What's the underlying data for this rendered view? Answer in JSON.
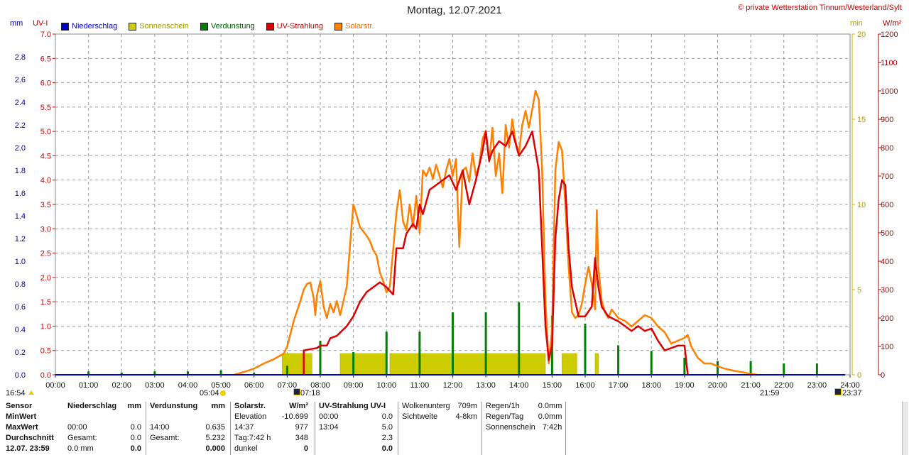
{
  "header": {
    "title": "Montag, 12.07.2021",
    "copyright": "© private Wetterstation Tinnum/Westerland/Sylt"
  },
  "units": {
    "left1": "mm",
    "left2": "UV-I",
    "right1": "min",
    "right2": "W/m²"
  },
  "legend": [
    {
      "label": "Niederschlag",
      "color": "#0000cc"
    },
    {
      "label": "Sonnenschein",
      "color": "#cccc00"
    },
    {
      "label": "Verdunstung",
      "color": "#008000"
    },
    {
      "label": "UV-Strahlung",
      "color": "#dd0000"
    },
    {
      "label": "Solarstr.",
      "color": "#ff8000"
    }
  ],
  "sun_times": {
    "moonset": "16:54",
    "sunrise": "05:04",
    "civil_dawn": "07:18",
    "sunset": "21:59",
    "civil_dusk": "23:37"
  },
  "stats": {
    "col1": {
      "header": "Sensor",
      "rows": [
        "MinWert",
        "MaxWert",
        "Durchschnitt",
        "12.07. 23:59"
      ]
    },
    "niederschlag": {
      "header": "Niederschlag",
      "unit": "mm",
      "rows": [
        [
          "",
          ""
        ],
        [
          "00:00",
          "0.0"
        ],
        [
          "Gesamt:",
          "0.0"
        ],
        [
          "0.0 mm",
          "0.0"
        ]
      ]
    },
    "verdunstung": {
      "header": "Verdunstung",
      "unit": "mm",
      "rows": [
        [
          "",
          ""
        ],
        [
          "14:00",
          "0.635"
        ],
        [
          "Gesamt:",
          "5.232"
        ],
        [
          "",
          "0.000"
        ]
      ]
    },
    "solar": {
      "header": "Solarstr.",
      "unit": "W/m²",
      "rows": [
        [
          "Elevation",
          "-10.699"
        ],
        [
          "14:37",
          "977"
        ],
        [
          "Tag:7:42 h",
          "348"
        ],
        [
          "dunkel",
          "0"
        ]
      ]
    },
    "uv": {
      "header": "UV-Strahlung UV-I",
      "rows": [
        [
          "00:00",
          "0.0"
        ],
        [
          "13:04",
          "5.0"
        ],
        [
          "",
          "2.3"
        ],
        [
          "",
          "0.0"
        ]
      ]
    },
    "wolken": {
      "rows": [
        [
          "Wolkenunterg",
          "709m"
        ],
        [
          "Sichtweite",
          "4-8km"
        ]
      ]
    },
    "regen": {
      "rows": [
        [
          "Regen/1h",
          "0.0mm"
        ],
        [
          "Regen/Tag",
          "0.0mm"
        ],
        [
          "Sonnenschein",
          "7:42h"
        ]
      ]
    }
  },
  "chart_data": {
    "type": "line",
    "title": "Montag, 12.07.2021",
    "x_unit": "hour",
    "xlim": [
      0,
      24
    ],
    "x_tick_labels": [
      "00:00",
      "01:00",
      "02:00",
      "03:00",
      "04:00",
      "05:00",
      "06:00",
      "07:00",
      "08:00",
      "09:00",
      "10:00",
      "11:00",
      "12:00",
      "13:00",
      "14:00",
      "15:00",
      "16:00",
      "17:00",
      "18:00",
      "19:00",
      "20:00",
      "21:00",
      "22:00",
      "23:00",
      "24:00"
    ],
    "axes": {
      "mm": {
        "range": [
          0,
          3.0
        ],
        "ticks": [
          0.0,
          0.2,
          0.4,
          0.6,
          0.8,
          1.0,
          1.2,
          1.4,
          1.6,
          1.8,
          2.0,
          2.2,
          2.4,
          2.6,
          2.8
        ]
      },
      "uv": {
        "range": [
          0,
          7.0
        ],
        "ticks": [
          0.0,
          0.5,
          1.0,
          1.5,
          2.0,
          2.5,
          3.0,
          3.5,
          4.0,
          4.5,
          5.0,
          5.5,
          6.0,
          6.5,
          7.0
        ]
      },
      "min": {
        "range": [
          0,
          20
        ],
        "ticks": [
          0,
          5,
          10,
          15,
          20
        ]
      },
      "wm2": {
        "range": [
          0,
          1200
        ],
        "ticks": [
          0,
          100,
          200,
          300,
          400,
          500,
          600,
          700,
          800,
          900,
          1000,
          1100,
          1200
        ]
      }
    },
    "grid": true,
    "series": [
      {
        "name": "Solarstr.",
        "axis": "wm2",
        "color": "#ff8000",
        "points": [
          [
            5.4,
            0
          ],
          [
            5.7,
            10
          ],
          [
            6.0,
            22
          ],
          [
            6.3,
            40
          ],
          [
            6.6,
            55
          ],
          [
            6.9,
            75
          ],
          [
            7.0,
            100
          ],
          [
            7.2,
            190
          ],
          [
            7.4,
            260
          ],
          [
            7.5,
            300
          ],
          [
            7.6,
            320
          ],
          [
            7.7,
            325
          ],
          [
            7.8,
            270
          ],
          [
            7.85,
            210
          ],
          [
            7.9,
            280
          ],
          [
            8.0,
            330
          ],
          [
            8.1,
            240
          ],
          [
            8.2,
            200
          ],
          [
            8.3,
            250
          ],
          [
            8.4,
            220
          ],
          [
            8.5,
            260
          ],
          [
            8.6,
            210
          ],
          [
            8.8,
            310
          ],
          [
            8.9,
            460
          ],
          [
            9.0,
            600
          ],
          [
            9.1,
            560
          ],
          [
            9.2,
            520
          ],
          [
            9.4,
            490
          ],
          [
            9.5,
            470
          ],
          [
            9.6,
            440
          ],
          [
            9.7,
            420
          ],
          [
            9.8,
            360
          ],
          [
            9.9,
            330
          ],
          [
            10.0,
            290
          ],
          [
            10.1,
            310
          ],
          [
            10.2,
            440
          ],
          [
            10.3,
            570
          ],
          [
            10.4,
            650
          ],
          [
            10.5,
            540
          ],
          [
            10.6,
            510
          ],
          [
            10.7,
            600
          ],
          [
            10.8,
            520
          ],
          [
            10.9,
            630
          ],
          [
            11.0,
            500
          ],
          [
            11.1,
            720
          ],
          [
            11.2,
            700
          ],
          [
            11.3,
            730
          ],
          [
            11.4,
            690
          ],
          [
            11.5,
            740
          ],
          [
            11.6,
            700
          ],
          [
            11.7,
            660
          ],
          [
            11.8,
            720
          ],
          [
            11.9,
            760
          ],
          [
            12.0,
            700
          ],
          [
            12.1,
            760
          ],
          [
            12.2,
            450
          ],
          [
            12.3,
            720
          ],
          [
            12.4,
            730
          ],
          [
            12.5,
            680
          ],
          [
            12.6,
            780
          ],
          [
            12.7,
            700
          ],
          [
            12.8,
            740
          ],
          [
            12.9,
            830
          ],
          [
            13.0,
            860
          ],
          [
            13.1,
            750
          ],
          [
            13.2,
            870
          ],
          [
            13.3,
            700
          ],
          [
            13.4,
            780
          ],
          [
            13.5,
            640
          ],
          [
            13.6,
            880
          ],
          [
            13.7,
            800
          ],
          [
            13.8,
            900
          ],
          [
            13.9,
            820
          ],
          [
            14.0,
            780
          ],
          [
            14.1,
            880
          ],
          [
            14.2,
            930
          ],
          [
            14.3,
            870
          ],
          [
            14.5,
            1000
          ],
          [
            14.6,
            970
          ],
          [
            14.7,
            720
          ],
          [
            14.8,
            260
          ],
          [
            14.9,
            40
          ],
          [
            15.0,
            160
          ],
          [
            15.1,
            720
          ],
          [
            15.2,
            820
          ],
          [
            15.3,
            790
          ],
          [
            15.4,
            600
          ],
          [
            15.5,
            380
          ],
          [
            15.6,
            220
          ],
          [
            15.7,
            200
          ],
          [
            15.8,
            210
          ],
          [
            15.9,
            250
          ],
          [
            16.0,
            320
          ],
          [
            16.1,
            380
          ],
          [
            16.2,
            320
          ],
          [
            16.3,
            230
          ],
          [
            16.35,
            580
          ],
          [
            16.4,
            380
          ],
          [
            16.5,
            260
          ],
          [
            16.6,
            220
          ],
          [
            16.7,
            200
          ],
          [
            16.8,
            230
          ],
          [
            17.0,
            200
          ],
          [
            17.2,
            190
          ],
          [
            17.4,
            170
          ],
          [
            17.6,
            190
          ],
          [
            17.8,
            210
          ],
          [
            18.0,
            200
          ],
          [
            18.2,
            170
          ],
          [
            18.4,
            150
          ],
          [
            18.6,
            110
          ],
          [
            18.8,
            120
          ],
          [
            19.0,
            130
          ],
          [
            19.1,
            140
          ],
          [
            19.2,
            100
          ],
          [
            19.4,
            60
          ],
          [
            19.6,
            40
          ],
          [
            19.8,
            40
          ],
          [
            20.0,
            30
          ],
          [
            20.2,
            22
          ],
          [
            20.5,
            14
          ],
          [
            20.8,
            8
          ],
          [
            21.0,
            3
          ],
          [
            21.2,
            0
          ]
        ]
      },
      {
        "name": "UV-Strahlung",
        "axis": "uv",
        "color": "#dd0000",
        "points": [
          [
            7.5,
            0
          ],
          [
            7.5,
            0.5
          ],
          [
            7.9,
            0.55
          ],
          [
            8.0,
            0.6
          ],
          [
            8.2,
            0.6
          ],
          [
            8.3,
            0.75
          ],
          [
            8.5,
            0.8
          ],
          [
            8.8,
            1.0
          ],
          [
            9.0,
            1.2
          ],
          [
            9.2,
            1.5
          ],
          [
            9.4,
            1.7
          ],
          [
            9.6,
            1.8
          ],
          [
            9.8,
            1.9
          ],
          [
            10.0,
            1.8
          ],
          [
            10.2,
            1.65
          ],
          [
            10.3,
            2.6
          ],
          [
            10.5,
            2.6
          ],
          [
            10.6,
            2.9
          ],
          [
            10.8,
            3.1
          ],
          [
            10.9,
            3.0
          ],
          [
            11.0,
            3.5
          ],
          [
            11.1,
            3.3
          ],
          [
            11.3,
            3.8
          ],
          [
            11.5,
            3.9
          ],
          [
            11.7,
            4.0
          ],
          [
            11.9,
            4.1
          ],
          [
            12.1,
            3.8
          ],
          [
            12.3,
            4.2
          ],
          [
            12.5,
            3.5
          ],
          [
            12.7,
            4.0
          ],
          [
            12.9,
            4.6
          ],
          [
            13.0,
            5.0
          ],
          [
            13.1,
            4.4
          ],
          [
            13.2,
            4.6
          ],
          [
            13.4,
            4.8
          ],
          [
            13.6,
            4.7
          ],
          [
            13.8,
            5.0
          ],
          [
            14.0,
            4.5
          ],
          [
            14.2,
            4.7
          ],
          [
            14.4,
            5.0
          ],
          [
            14.6,
            4.2
          ],
          [
            14.8,
            1.0
          ],
          [
            14.9,
            0.3
          ],
          [
            15.0,
            0.6
          ],
          [
            15.1,
            2.8
          ],
          [
            15.2,
            3.6
          ],
          [
            15.3,
            4.0
          ],
          [
            15.4,
            3.9
          ],
          [
            15.5,
            2.6
          ],
          [
            15.6,
            1.8
          ],
          [
            15.8,
            1.2
          ],
          [
            16.0,
            1.2
          ],
          [
            16.2,
            1.4
          ],
          [
            16.3,
            2.4
          ],
          [
            16.4,
            1.8
          ],
          [
            16.5,
            1.4
          ],
          [
            16.7,
            1.2
          ],
          [
            17.0,
            1.1
          ],
          [
            17.2,
            1.0
          ],
          [
            17.4,
            0.9
          ],
          [
            17.6,
            1.0
          ],
          [
            17.8,
            0.9
          ],
          [
            18.0,
            0.95
          ],
          [
            18.2,
            0.7
          ],
          [
            18.4,
            0.5
          ],
          [
            18.6,
            0.55
          ],
          [
            18.8,
            0.6
          ],
          [
            19.0,
            0.6
          ],
          [
            19.05,
            0.3
          ],
          [
            19.1,
            0
          ]
        ]
      },
      {
        "name": "Sonnenschein",
        "axis": "min",
        "color": "#cccc00",
        "bars": [
          [
            6.85,
            7.75
          ],
          [
            8.6,
            10.0
          ],
          [
            10.1,
            14.8
          ],
          [
            15.3,
            15.75
          ],
          [
            16.3,
            16.4
          ]
        ],
        "level": 1.25
      },
      {
        "name": "Verdunstung",
        "axis": "mm",
        "color": "#008000",
        "points": [
          [
            1,
            0.03
          ],
          [
            2,
            0.02
          ],
          [
            3,
            0.03
          ],
          [
            4,
            0.03
          ],
          [
            5,
            0.04
          ],
          [
            6,
            0.02
          ],
          [
            7,
            0.08
          ],
          [
            8,
            0.3
          ],
          [
            9,
            0.2
          ],
          [
            10,
            0.38
          ],
          [
            11,
            0.38
          ],
          [
            12,
            0.55
          ],
          [
            13,
            0.55
          ],
          [
            14,
            0.64
          ],
          [
            15,
            0.52
          ],
          [
            16,
            0.45
          ],
          [
            17,
            0.26
          ],
          [
            18,
            0.21
          ],
          [
            19,
            0.15
          ],
          [
            20,
            0.12
          ],
          [
            21,
            0.12
          ],
          [
            22,
            0.1
          ],
          [
            23,
            0.1
          ]
        ]
      },
      {
        "name": "Niederschlag",
        "axis": "mm",
        "color": "#0000cc",
        "points": []
      }
    ]
  }
}
